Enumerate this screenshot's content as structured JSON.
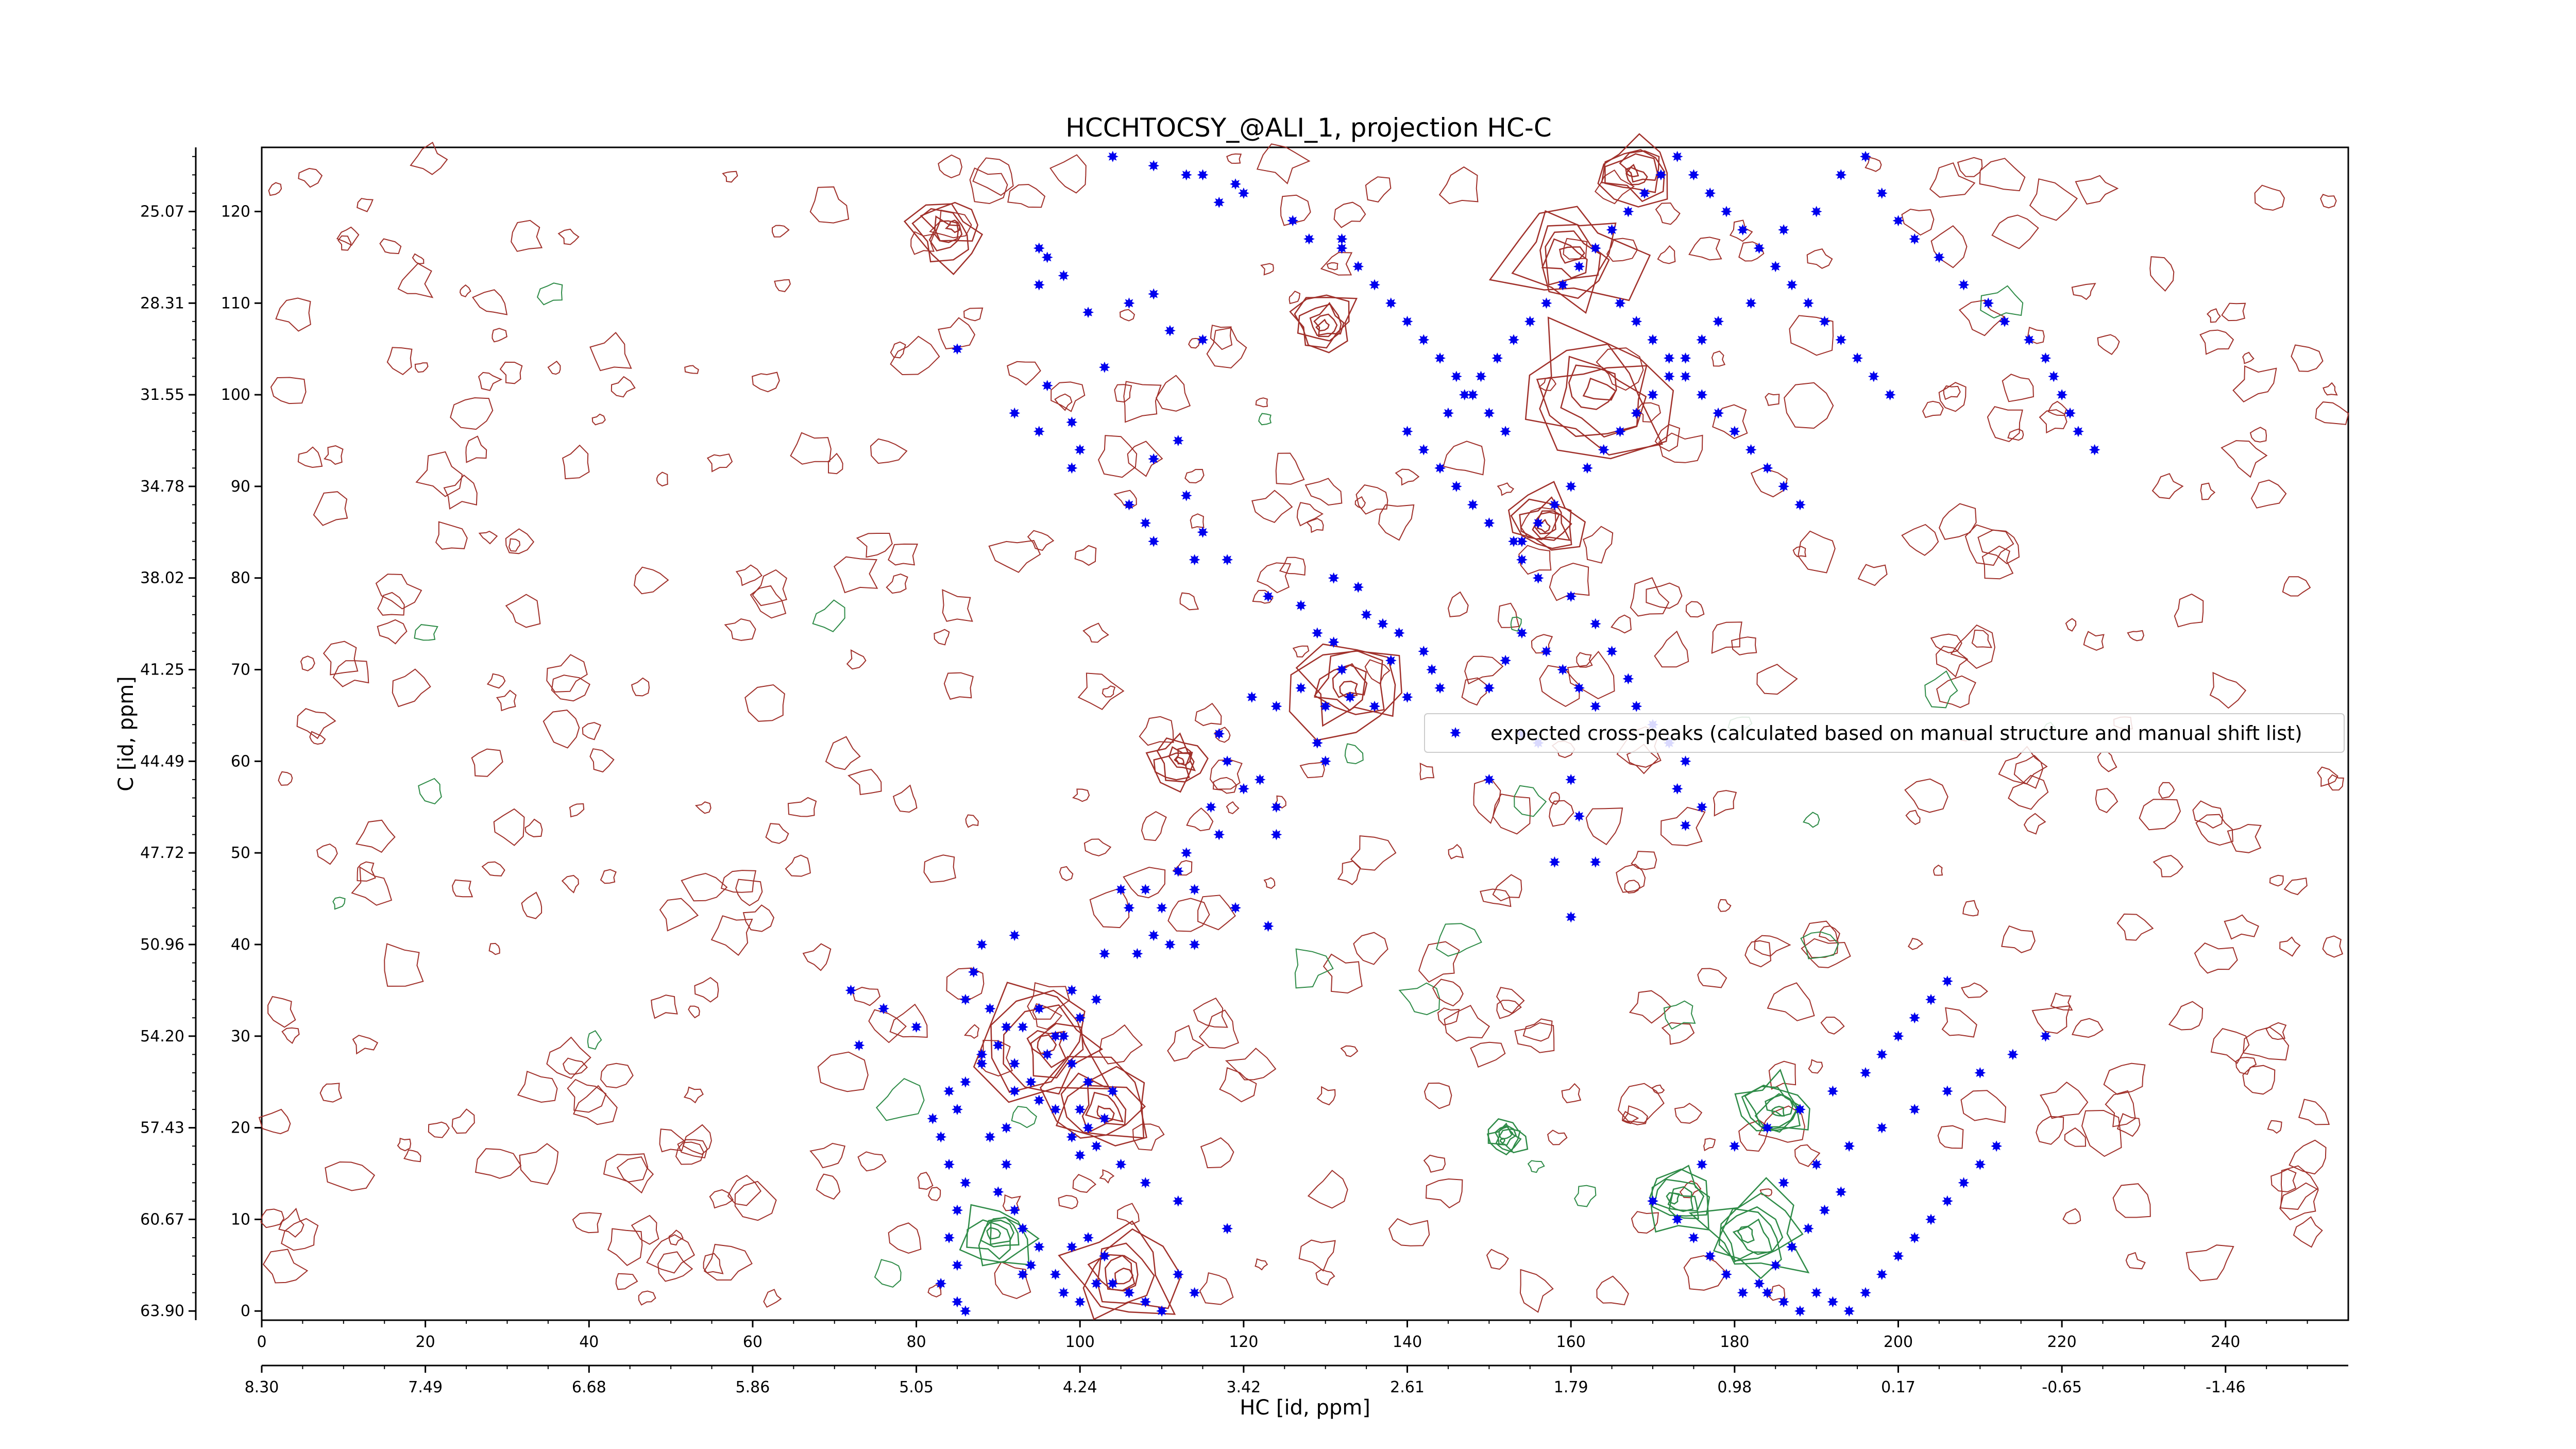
{
  "chart_data": {
    "type": "scatter",
    "title": "HCCHTOCSY_@ALI_1, projection HC-C",
    "xlabel": "HC [id, ppm]",
    "ylabel": "C [id, ppm]",
    "x_index_range": [
      0,
      255
    ],
    "y_index_range": [
      -1,
      127
    ],
    "x_index_ticks": [
      "0",
      "20",
      "40",
      "60",
      "80",
      "100",
      "120",
      "140",
      "160",
      "180",
      "200",
      "220",
      "240"
    ],
    "x_ppm_ticks": [
      "8.30",
      "7.49",
      "6.68",
      "5.86",
      "5.05",
      "4.24",
      "3.42",
      "2.61",
      "1.79",
      "0.98",
      "0.17",
      "-0.65",
      "-1.46"
    ],
    "y_index_ticks": [
      "0",
      "10",
      "20",
      "30",
      "40",
      "50",
      "60",
      "70",
      "80",
      "90",
      "100",
      "110",
      "120"
    ],
    "y_ppm_ticks": [
      "63.90",
      "60.67",
      "57.43",
      "54.20",
      "50.96",
      "47.72",
      "44.49",
      "41.25",
      "38.02",
      "34.78",
      "31.55",
      "28.31",
      "25.07"
    ],
    "grid": false,
    "legend_position": "center-right",
    "contours": {
      "positive_color": "#a0302a",
      "negative_color": "#2e8b47"
    },
    "series": [
      {
        "name": "expected cross-peaks (calculated based on manual structure and manual shift list)",
        "color": "#0000ee",
        "marker": "star",
        "points": [
          [
            104,
            126
          ],
          [
            109,
            125
          ],
          [
            113,
            124
          ],
          [
            115,
            124
          ],
          [
            119,
            123
          ],
          [
            117,
            121
          ],
          [
            120,
            122
          ],
          [
            126,
            119
          ],
          [
            128,
            117
          ],
          [
            132,
            117
          ],
          [
            95,
            116
          ],
          [
            96,
            115
          ],
          [
            98,
            113
          ],
          [
            95,
            112
          ],
          [
            101,
            109
          ],
          [
            109,
            111
          ],
          [
            106,
            110
          ],
          [
            111,
            107
          ],
          [
            115,
            106
          ],
          [
            85,
            105
          ],
          [
            96,
            101
          ],
          [
            103,
            103
          ],
          [
            99,
            97
          ],
          [
            92,
            98
          ],
          [
            95,
            96
          ],
          [
            100,
            94
          ],
          [
            99,
            92
          ],
          [
            109,
            93
          ],
          [
            112,
            95
          ],
          [
            106,
            88
          ],
          [
            113,
            89
          ],
          [
            108,
            86
          ],
          [
            109,
            84
          ],
          [
            115,
            85
          ],
          [
            114,
            82
          ],
          [
            118,
            82
          ],
          [
            123,
            78
          ],
          [
            127,
            77
          ],
          [
            131,
            80
          ],
          [
            134,
            79
          ],
          [
            129,
            74
          ],
          [
            135,
            76
          ],
          [
            137,
            75
          ],
          [
            131,
            73
          ],
          [
            139,
            74
          ],
          [
            138,
            71
          ],
          [
            142,
            72
          ],
          [
            143,
            70
          ],
          [
            144,
            68
          ],
          [
            140,
            67
          ],
          [
            136,
            66
          ],
          [
            133,
            67
          ],
          [
            130,
            66
          ],
          [
            127,
            68
          ],
          [
            124,
            66
          ],
          [
            121,
            67
          ],
          [
            132,
            70
          ],
          [
            117,
            63
          ],
          [
            118,
            60
          ],
          [
            120,
            57
          ],
          [
            116,
            55
          ],
          [
            117,
            52
          ],
          [
            124,
            52
          ],
          [
            112,
            48
          ],
          [
            113,
            50
          ],
          [
            114,
            46
          ],
          [
            108,
            46
          ],
          [
            105,
            46
          ],
          [
            110,
            44
          ],
          [
            106,
            44
          ],
          [
            119,
            44
          ],
          [
            123,
            42
          ],
          [
            114,
            40
          ],
          [
            111,
            40
          ],
          [
            109,
            41
          ],
          [
            107,
            39
          ],
          [
            103,
            39
          ],
          [
            92,
            41
          ],
          [
            88,
            40
          ],
          [
            87,
            37
          ],
          [
            86,
            34
          ],
          [
            89,
            33
          ],
          [
            91,
            31
          ],
          [
            90,
            29
          ],
          [
            88,
            27
          ],
          [
            86,
            25
          ],
          [
            84,
            24
          ],
          [
            85,
            22
          ],
          [
            82,
            21
          ],
          [
            83,
            19
          ],
          [
            84,
            16
          ],
          [
            86,
            14
          ],
          [
            85,
            11
          ],
          [
            84,
            8
          ],
          [
            85,
            5
          ],
          [
            83,
            3
          ],
          [
            85,
            1
          ],
          [
            86,
            0
          ],
          [
            88,
            28
          ],
          [
            92,
            27
          ],
          [
            94,
            25
          ],
          [
            95,
            23
          ],
          [
            97,
            22
          ],
          [
            96,
            28
          ],
          [
            98,
            30
          ],
          [
            99,
            27
          ],
          [
            101,
            25
          ],
          [
            100,
            22
          ],
          [
            101,
            20
          ],
          [
            99,
            19
          ],
          [
            100,
            17
          ],
          [
            102,
            18
          ],
          [
            103,
            21
          ],
          [
            104,
            24
          ],
          [
            100,
            32
          ],
          [
            102,
            34
          ],
          [
            99,
            35
          ],
          [
            95,
            33
          ],
          [
            97,
            30
          ],
          [
            93,
            31
          ],
          [
            92,
            24
          ],
          [
            91,
            20
          ],
          [
            89,
            19
          ],
          [
            91,
            16
          ],
          [
            90,
            13
          ],
          [
            92,
            11
          ],
          [
            93,
            9
          ],
          [
            95,
            7
          ],
          [
            94,
            5
          ],
          [
            97,
            4
          ],
          [
            98,
            2
          ],
          [
            100,
            1
          ],
          [
            102,
            3
          ],
          [
            103,
            6
          ],
          [
            101,
            8
          ],
          [
            99,
            7
          ],
          [
            104,
            3
          ],
          [
            106,
            2
          ],
          [
            108,
            1
          ],
          [
            110,
            0
          ],
          [
            105,
            16
          ],
          [
            108,
            14
          ],
          [
            112,
            12
          ],
          [
            118,
            9
          ],
          [
            112,
            4
          ],
          [
            114,
            2
          ],
          [
            72,
            35
          ],
          [
            76,
            33
          ],
          [
            80,
            31
          ],
          [
            73,
            29
          ],
          [
            93,
            4
          ],
          [
            124,
            55
          ],
          [
            122,
            58
          ],
          [
            129,
            62
          ],
          [
            130,
            60
          ],
          [
            150,
            58
          ],
          [
            154,
            63
          ],
          [
            156,
            62
          ],
          [
            160,
            58
          ],
          [
            161,
            54
          ],
          [
            158,
            49
          ],
          [
            163,
            49
          ],
          [
            160,
            43
          ],
          [
            150,
            68
          ],
          [
            152,
            71
          ],
          [
            154,
            74
          ],
          [
            157,
            72
          ],
          [
            159,
            70
          ],
          [
            161,
            68
          ],
          [
            163,
            66
          ],
          [
            160,
            78
          ],
          [
            163,
            75
          ],
          [
            165,
            72
          ],
          [
            167,
            69
          ],
          [
            168,
            66
          ],
          [
            170,
            64
          ],
          [
            172,
            62
          ],
          [
            174,
            60
          ],
          [
            173,
            57
          ],
          [
            176,
            55
          ],
          [
            174,
            53
          ],
          [
            156,
            80
          ],
          [
            154,
            82
          ],
          [
            153,
            84
          ],
          [
            150,
            86
          ],
          [
            148,
            88
          ],
          [
            146,
            90
          ],
          [
            144,
            92
          ],
          [
            142,
            94
          ],
          [
            140,
            96
          ],
          [
            145,
            98
          ],
          [
            147,
            100
          ],
          [
            149,
            102
          ],
          [
            151,
            104
          ],
          [
            153,
            106
          ],
          [
            155,
            108
          ],
          [
            157,
            110
          ],
          [
            159,
            112
          ],
          [
            161,
            114
          ],
          [
            163,
            116
          ],
          [
            165,
            118
          ],
          [
            167,
            120
          ],
          [
            169,
            122
          ],
          [
            171,
            124
          ],
          [
            173,
            126
          ],
          [
            175,
            124
          ],
          [
            177,
            122
          ],
          [
            179,
            120
          ],
          [
            181,
            118
          ],
          [
            183,
            116
          ],
          [
            185,
            114
          ],
          [
            187,
            112
          ],
          [
            189,
            110
          ],
          [
            191,
            108
          ],
          [
            193,
            106
          ],
          [
            195,
            104
          ],
          [
            197,
            102
          ],
          [
            199,
            100
          ],
          [
            186,
            118
          ],
          [
            190,
            120
          ],
          [
            193,
            124
          ],
          [
            196,
            126
          ],
          [
            198,
            122
          ],
          [
            200,
            119
          ],
          [
            202,
            117
          ],
          [
            205,
            115
          ],
          [
            208,
            112
          ],
          [
            211,
            110
          ],
          [
            213,
            108
          ],
          [
            216,
            106
          ],
          [
            218,
            104
          ],
          [
            219,
            102
          ],
          [
            220,
            100
          ],
          [
            221,
            98
          ],
          [
            222,
            96
          ],
          [
            224,
            94
          ],
          [
            182,
            110
          ],
          [
            178,
            108
          ],
          [
            176,
            106
          ],
          [
            174,
            104
          ],
          [
            172,
            102
          ],
          [
            170,
            100
          ],
          [
            168,
            98
          ],
          [
            166,
            96
          ],
          [
            164,
            94
          ],
          [
            162,
            92
          ],
          [
            160,
            90
          ],
          [
            158,
            88
          ],
          [
            156,
            86
          ],
          [
            154,
            84
          ],
          [
            152,
            96
          ],
          [
            150,
            98
          ],
          [
            148,
            100
          ],
          [
            146,
            102
          ],
          [
            144,
            104
          ],
          [
            142,
            106
          ],
          [
            140,
            108
          ],
          [
            138,
            110
          ],
          [
            136,
            112
          ],
          [
            134,
            114
          ],
          [
            132,
            116
          ],
          [
            166,
            110
          ],
          [
            168,
            108
          ],
          [
            170,
            106
          ],
          [
            172,
            104
          ],
          [
            174,
            102
          ],
          [
            176,
            100
          ],
          [
            178,
            98
          ],
          [
            180,
            96
          ],
          [
            182,
            94
          ],
          [
            184,
            92
          ],
          [
            186,
            90
          ],
          [
            188,
            88
          ],
          [
            170,
            12
          ],
          [
            173,
            10
          ],
          [
            175,
            8
          ],
          [
            177,
            6
          ],
          [
            179,
            4
          ],
          [
            181,
            2
          ],
          [
            183,
            3
          ],
          [
            185,
            5
          ],
          [
            187,
            7
          ],
          [
            189,
            9
          ],
          [
            191,
            11
          ],
          [
            193,
            13
          ],
          [
            176,
            16
          ],
          [
            180,
            18
          ],
          [
            184,
            20
          ],
          [
            188,
            22
          ],
          [
            192,
            24
          ],
          [
            196,
            26
          ],
          [
            198,
            28
          ],
          [
            200,
            30
          ],
          [
            202,
            32
          ],
          [
            204,
            34
          ],
          [
            206,
            36
          ],
          [
            186,
            14
          ],
          [
            190,
            16
          ],
          [
            194,
            18
          ],
          [
            198,
            20
          ],
          [
            202,
            22
          ],
          [
            206,
            24
          ],
          [
            210,
            26
          ],
          [
            214,
            28
          ],
          [
            218,
            30
          ],
          [
            184,
            2
          ],
          [
            186,
            1
          ],
          [
            188,
            0
          ],
          [
            190,
            2
          ],
          [
            192,
            1
          ],
          [
            194,
            0
          ],
          [
            196,
            2
          ],
          [
            198,
            4
          ],
          [
            200,
            6
          ],
          [
            202,
            8
          ],
          [
            204,
            10
          ],
          [
            206,
            12
          ],
          [
            208,
            14
          ],
          [
            210,
            16
          ],
          [
            212,
            18
          ]
        ]
      }
    ]
  }
}
